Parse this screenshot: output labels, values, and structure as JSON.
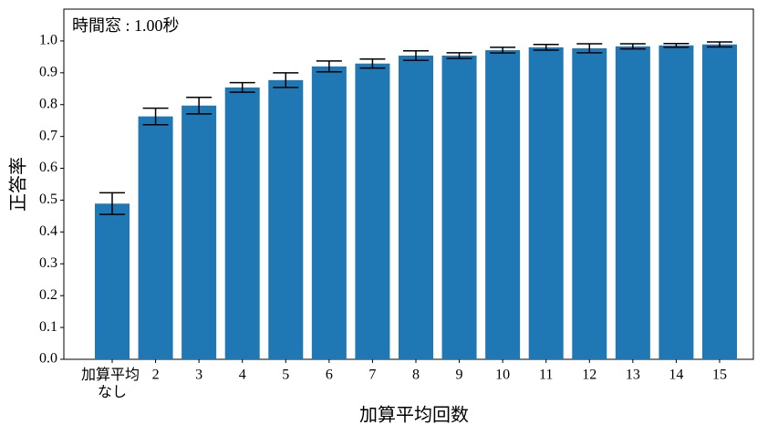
{
  "chart_data": {
    "type": "bar",
    "annotation": "時間窓 : 1.00秒",
    "xlabel": "加算平均回数",
    "ylabel": "正答率",
    "categories": [
      "加算平均\nなし",
      "2",
      "3",
      "4",
      "5",
      "6",
      "7",
      "8",
      "9",
      "10",
      "11",
      "12",
      "13",
      "14",
      "15"
    ],
    "values": [
      0.489,
      0.763,
      0.797,
      0.854,
      0.877,
      0.92,
      0.929,
      0.954,
      0.954,
      0.971,
      0.98,
      0.977,
      0.983,
      0.986,
      0.989
    ],
    "errors": [
      0.034,
      0.026,
      0.026,
      0.015,
      0.023,
      0.017,
      0.014,
      0.015,
      0.009,
      0.009,
      0.009,
      0.014,
      0.008,
      0.006,
      0.008
    ],
    "color": "#1f77b4",
    "ylim": [
      0,
      1.1
    ],
    "yticks": [
      {
        "value": 0,
        "label": "0.0"
      },
      0.1,
      0.2,
      0.3,
      0.4,
      0.5,
      0.6,
      0.7,
      0.8,
      0.9,
      {
        "value": 1,
        "label": "1.0"
      }
    ]
  }
}
